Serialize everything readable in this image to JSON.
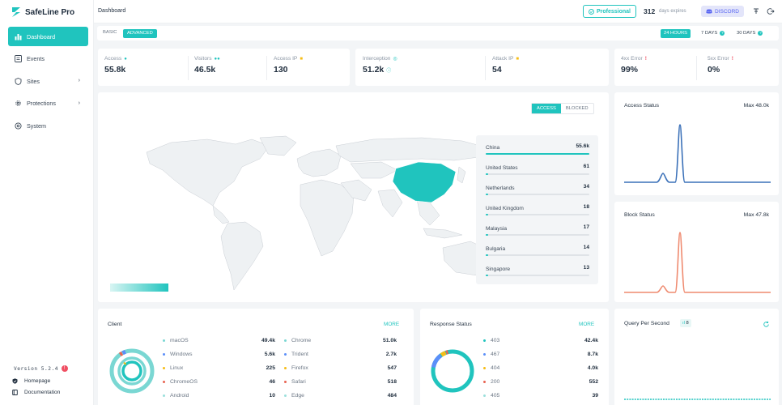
{
  "app": {
    "name": "SafeLine Pro"
  },
  "sidebar": {
    "items": [
      {
        "label": "Dashboard",
        "icon": "bar-chart-icon",
        "active": true
      },
      {
        "label": "Events",
        "icon": "list-icon"
      },
      {
        "label": "Sites",
        "icon": "shield-icon",
        "chevron": true
      },
      {
        "label": "Protections",
        "icon": "gear-icon",
        "chevron": true
      },
      {
        "label": "System",
        "icon": "settings-icon"
      }
    ],
    "version": "Version 5.2.4",
    "version_badge": "!",
    "links": [
      {
        "label": "Homepage",
        "icon": "home-shield-icon"
      },
      {
        "label": "Documentation",
        "icon": "book-icon"
      }
    ]
  },
  "topbar": {
    "breadcrumb": "Dashboard",
    "professional_label": "Professional",
    "days_count": "312",
    "days_label": "days expires",
    "discord_label": "DISCORD"
  },
  "filters": {
    "basic": "BASIC",
    "advanced": "ADVANCED",
    "ranges": [
      {
        "label": "24 HOURS",
        "active": true
      },
      {
        "label": "7 DAYS"
      },
      {
        "label": "30 DAYS"
      }
    ]
  },
  "stats": {
    "access": {
      "label": "Access",
      "value": "55.8k"
    },
    "visitors": {
      "label": "Visitors",
      "value": "46.5k"
    },
    "access_ip": {
      "label": "Access IP",
      "value": "130"
    },
    "interception": {
      "label": "Interception",
      "value": "51.2k"
    },
    "attack_ip": {
      "label": "Attack IP",
      "value": "54"
    },
    "err4xx": {
      "label": "4xx Error",
      "value": "99%"
    },
    "err5xx": {
      "label": "5xx Error",
      "value": "0%"
    }
  },
  "map": {
    "toggle": [
      "ACCESS",
      "BLOCKED"
    ],
    "countries": [
      {
        "name": "China",
        "value": "55.6k",
        "fraction": 1.0
      },
      {
        "name": "United States",
        "value": "61",
        "fraction": 0.02
      },
      {
        "name": "Netherlands",
        "value": "34",
        "fraction": 0.02
      },
      {
        "name": "United Kingdom",
        "value": "18",
        "fraction": 0.02
      },
      {
        "name": "Malaysia",
        "value": "17",
        "fraction": 0.02
      },
      {
        "name": "Bulgaria",
        "value": "14",
        "fraction": 0.02
      },
      {
        "name": "Singapore",
        "value": "13",
        "fraction": 0.02
      }
    ]
  },
  "access_status": {
    "title": "Access Status",
    "max": "Max 48.0k"
  },
  "block_status": {
    "title": "Block Status",
    "max": "Max 47.8k"
  },
  "client": {
    "title": "Client",
    "more": "MORE",
    "left": [
      {
        "name": "macOS",
        "value": "49.4k",
        "color": "#7ad7d3"
      },
      {
        "name": "Windows",
        "value": "5.6k",
        "color": "#5b8ff9"
      },
      {
        "name": "Linux",
        "value": "225",
        "color": "#f6bd16"
      },
      {
        "name": "ChromeOS",
        "value": "46",
        "color": "#e86452"
      },
      {
        "name": "Android",
        "value": "10",
        "color": "#9be0dc"
      }
    ],
    "right": [
      {
        "name": "Chrome",
        "value": "51.0k",
        "color": "#7ad7d3"
      },
      {
        "name": "Trident",
        "value": "2.7k",
        "color": "#5b8ff9"
      },
      {
        "name": "Firefox",
        "value": "547",
        "color": "#f6bd16"
      },
      {
        "name": "Safari",
        "value": "518",
        "color": "#e86452"
      },
      {
        "name": "Edge",
        "value": "484",
        "color": "#9be0dc"
      }
    ]
  },
  "response": {
    "title": "Response Status",
    "more": "MORE",
    "items": [
      {
        "name": "403",
        "value": "42.4k",
        "color": "#20c4be"
      },
      {
        "name": "467",
        "value": "8.7k",
        "color": "#5b8ff9"
      },
      {
        "name": "404",
        "value": "4.0k",
        "color": "#f6bd16"
      },
      {
        "name": "200",
        "value": "552",
        "color": "#e86452"
      },
      {
        "name": "405",
        "value": "39",
        "color": "#9be0dc"
      }
    ]
  },
  "qps": {
    "title": "Query Per Second",
    "badge": "8"
  }
}
